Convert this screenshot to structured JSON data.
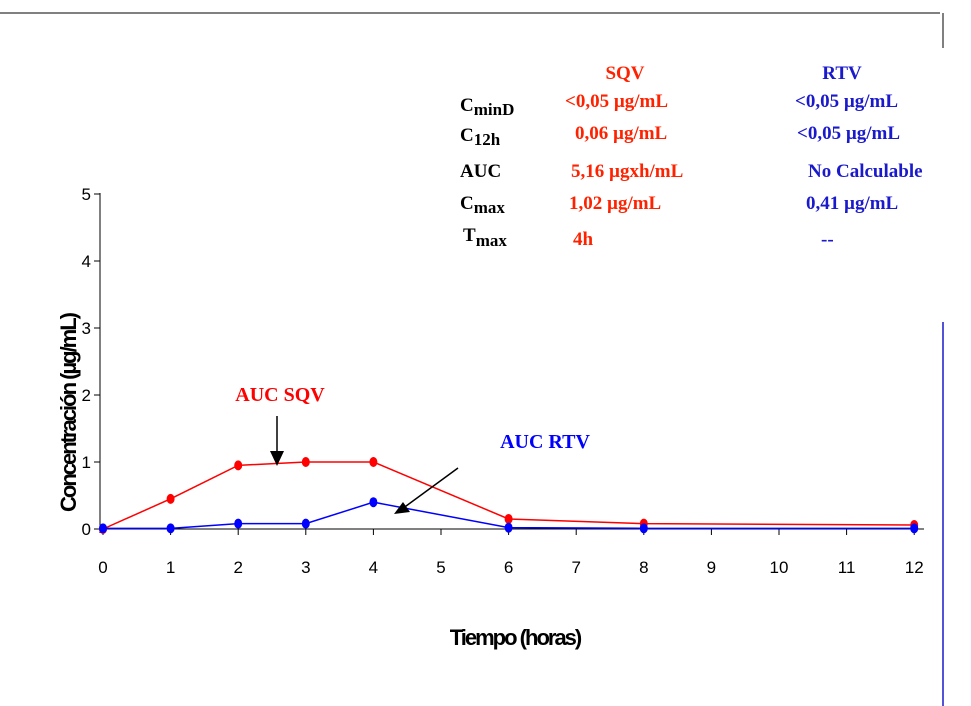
{
  "chart_data": {
    "type": "line",
    "xlabel": "Tiempo (horas)",
    "ylabel": "Concentración (µg/mL)",
    "x_ticks": [
      "0",
      "1",
      "2",
      "3",
      "4",
      "5",
      "6",
      "7",
      "8",
      "9",
      "10",
      "11",
      "12"
    ],
    "y_ticks": [
      "0",
      "1",
      "2",
      "3",
      "4",
      "5"
    ],
    "xlim": [
      0,
      12
    ],
    "ylim": [
      0,
      5
    ],
    "series": [
      {
        "name": "SQV",
        "color": "#ff0000",
        "x": [
          0,
          1,
          2,
          3,
          4,
          6,
          8,
          12
        ],
        "y": [
          0.0,
          0.45,
          0.95,
          1.0,
          1.0,
          0.15,
          0.08,
          0.06
        ]
      },
      {
        "name": "RTV",
        "color": "#0000ff",
        "x": [
          0,
          1,
          2,
          3,
          4,
          6,
          8,
          12
        ],
        "y": [
          0.01,
          0.01,
          0.08,
          0.08,
          0.4,
          0.02,
          0.01,
          0.01
        ]
      }
    ],
    "annotations": {
      "sqv": {
        "label": "AUC SQV",
        "color": "#ff0000"
      },
      "rtv": {
        "label": "AUC RTV",
        "color": "#0000ff"
      }
    },
    "table": {
      "headers": {
        "sqv": "SQV",
        "rtv": "RTV"
      },
      "rows": [
        {
          "param_main": "C",
          "param_sub": "minD",
          "sqv": "<0,05 µg/mL",
          "rtv": "<0,05 µg/mL"
        },
        {
          "param_main": "C",
          "param_sub": "12h",
          "sqv": "0,06 µg/mL",
          "rtv": "<0,05  µg/mL"
        },
        {
          "param_main": "AUC",
          "param_sub": "",
          "sqv": "5,16  µgxh/mL",
          "rtv": "No Calculable"
        },
        {
          "param_main": "C",
          "param_sub": "max",
          "sqv": "1,02  µg/mL",
          "rtv": "0,41 µg/mL"
        },
        {
          "param_main": "T",
          "param_sub": "max",
          "sqv": "4h",
          "rtv": "--"
        }
      ]
    },
    "colors": {
      "sqv_table": "#ff2200",
      "rtv_table": "#1a1acc"
    }
  }
}
